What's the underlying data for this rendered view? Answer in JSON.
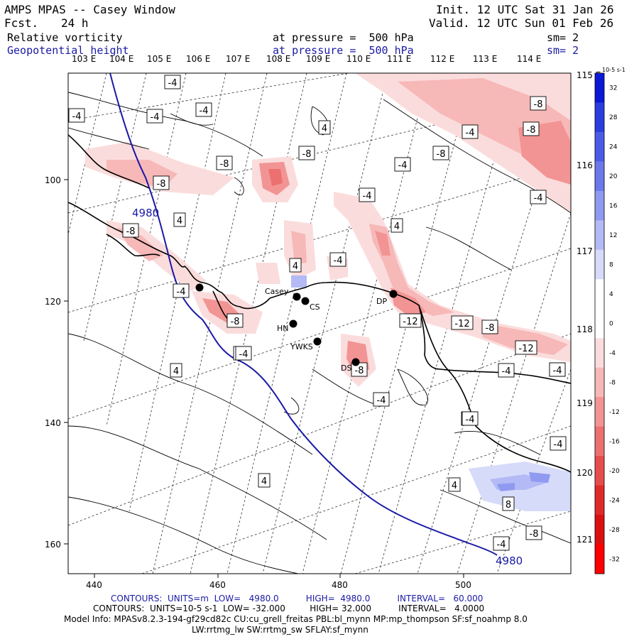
{
  "header": {
    "title": "AMPS MPAS -- Casey Window",
    "fcst_label": "Fcst.",
    "fcst_value": "24 h",
    "init": "Init. 12 UTC Sat 31 Jan 26",
    "valid": "Valid. 12 UTC Sun 01 Feb 26",
    "field1_name": "Relative vorticity",
    "field1_level": "at pressure =  500 hPa",
    "field1_sm": "sm= 2",
    "field2_name": "Geopotential height",
    "field2_level": "at pressure =  500 hPa",
    "field2_sm": "sm= 2"
  },
  "lon_labels_top": [
    "103 E",
    "104 E",
    "105 E",
    "106 E",
    "107 E",
    "108 E",
    "109 E",
    "110 E",
    "111 E",
    "112 E",
    "113 E",
    "114 E"
  ],
  "lon_labels_right": [
    "115 E",
    "116 E",
    "117 E",
    "118 E",
    "119 E",
    "120 E",
    "121 E"
  ],
  "axis_x_ticks": [
    "440",
    "460",
    "480",
    "500"
  ],
  "axis_y_ticks": [
    "100",
    "120",
    "140",
    "160"
  ],
  "colorbar": {
    "unit": "10-5 s-1",
    "labels": [
      "32",
      "28",
      "24",
      "20",
      "16",
      "12",
      "8",
      "4",
      "0",
      "-4",
      "-8",
      "-12",
      "-16",
      "-20",
      "-24",
      "-28",
      "-32"
    ],
    "colors": [
      "#0b18d6",
      "#2a3ee0",
      "#4a5ce6",
      "#6a78ea",
      "#8f9af0",
      "#b3baf5",
      "#d7dbfa",
      "#ffffff",
      "#ffffff",
      "#fbdcdc",
      "#f7b8b8",
      "#f29494",
      "#ec7070",
      "#e64c4c",
      "#e02a2a",
      "#da1010",
      "#ff0000"
    ]
  },
  "stations": [
    "Casey",
    "CS",
    "HN",
    "YWKS",
    "DP",
    "DS"
  ],
  "contour_box_labels": [
    "-4",
    "-4",
    "-4",
    "-4",
    "4",
    "-8",
    "-8",
    "-8",
    "-8",
    "-4",
    "-8",
    "-8",
    "4",
    "-4",
    "-4",
    "-8",
    "4",
    "-4",
    "-4",
    "4",
    "-8",
    "-4",
    "-4",
    "-12",
    "-12",
    "-8",
    "-12",
    "-4",
    "-4",
    "4",
    "-4",
    "-4",
    "4",
    "4",
    "-4",
    "8",
    "-8",
    "-4",
    "-8",
    "-4",
    "-4",
    "-4"
  ],
  "height_labels": [
    "4980",
    "4980"
  ],
  "footer": {
    "contours_height": "CONTOURS:  UNITS=m  LOW=   4980.0          HIGH=  4980.0          INTERVAL=   60.000",
    "contours_vort": "CONTOURS:  UNITS=10-5 s-1  LOW= -32.000         HIGH= 32.000          INTERVAL=   4.0000",
    "model_info": "Model Info: MPASv8.2.3-194-gf29cd82c CU:cu_grell_freitas PBL:bl_mynn MP:mp_thompson SF:sf_noahmp 8.0",
    "model_info2": "LW:rrtmg_lw SW:rrtmg_sw SFLAY:sf_mynn"
  }
}
